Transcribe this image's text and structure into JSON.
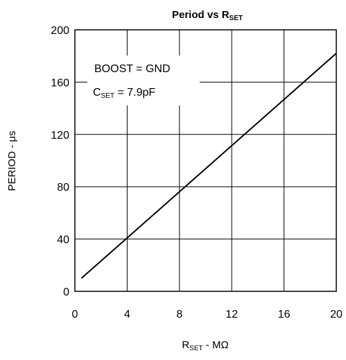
{
  "chart_data": {
    "type": "line",
    "title": {
      "main": "Period vs R",
      "sub": "SET"
    },
    "xlabel": {
      "main": "R",
      "sub": "SET",
      "rest": " - MΩ"
    },
    "ylabel": "PERIOD - μs",
    "xlim": [
      0,
      20
    ],
    "ylim": [
      0,
      200
    ],
    "xticks": [
      "0",
      "4",
      "8",
      "12",
      "16",
      "20"
    ],
    "yticks": [
      "0",
      "40",
      "80",
      "120",
      "160",
      "200"
    ],
    "grid": true,
    "annotations": {
      "boost": "BOOST = GND",
      "cset_main": "C",
      "cset_sub": "SET",
      "cset_rest": " = 7.9pF"
    },
    "series": [
      {
        "x": [
          0.5,
          20
        ],
        "y": [
          10,
          182
        ]
      }
    ],
    "line_color": "#000000"
  }
}
